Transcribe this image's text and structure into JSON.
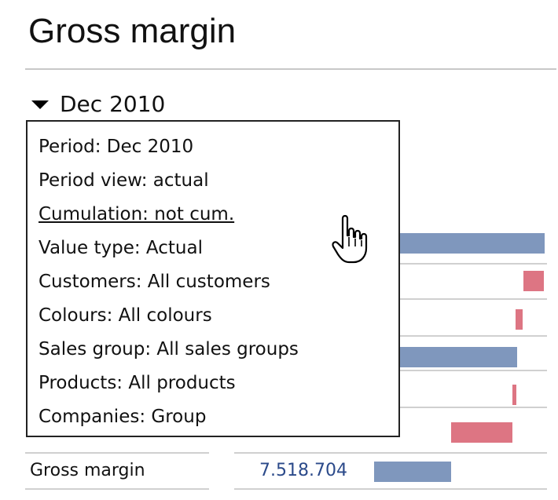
{
  "header": {
    "title": "Gross margin"
  },
  "period_selector": {
    "label": "Dec 2010",
    "icon": "caret-down-icon"
  },
  "filter_menu": {
    "items": [
      {
        "label": "Period: Dec 2010"
      },
      {
        "label": "Period view: actual"
      },
      {
        "label": "Cumulation: not cum."
      },
      {
        "label": "Value type: Actual"
      },
      {
        "label": "Customers: All customers"
      },
      {
        "label": "Colours: All colours"
      },
      {
        "label": "Sales group: All sales groups"
      },
      {
        "label": "Products: All products"
      },
      {
        "label": "Companies: Group"
      }
    ],
    "hovered_index": 2
  },
  "table": {
    "bottom_row": {
      "label": "Gross margin",
      "value": "7.518.704"
    }
  },
  "colors": {
    "positive_bar": "#7f97bd",
    "negative_bar": "#dd7583",
    "value_text": "#2b4a8a"
  },
  "cursor": {
    "icon": "hand-pointer-icon"
  }
}
